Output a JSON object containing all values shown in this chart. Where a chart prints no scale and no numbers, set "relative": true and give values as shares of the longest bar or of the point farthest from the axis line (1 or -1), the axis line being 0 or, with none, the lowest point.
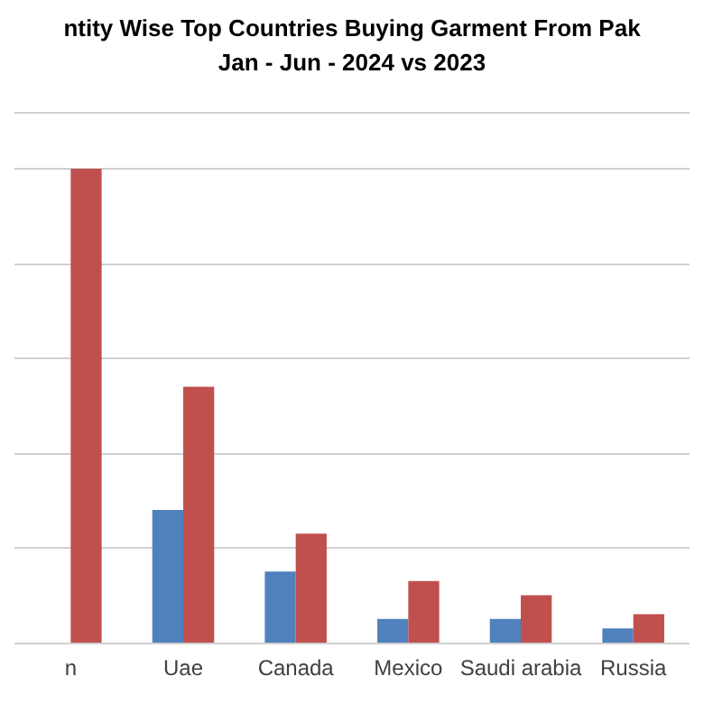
{
  "chart_data": {
    "type": "bar",
    "title": "ntity Wise Top Countries Buying Garment From Pak",
    "subtitle": "Jan - Jun - 2024 vs 2023",
    "relative": true,
    "grid": "y",
    "categories": [
      "n",
      "Uae",
      "Canada",
      "Mexico",
      "Saudi arabia",
      "Russia"
    ],
    "series": [
      {
        "color": "#4f81bd",
        "values": [
          null,
          0.28,
          0.15,
          0.05,
          0.05,
          0.03
        ]
      },
      {
        "color": "#c0504d",
        "values": [
          1,
          0.54,
          0.23,
          0.13,
          0.1,
          0.06
        ]
      }
    ]
  }
}
